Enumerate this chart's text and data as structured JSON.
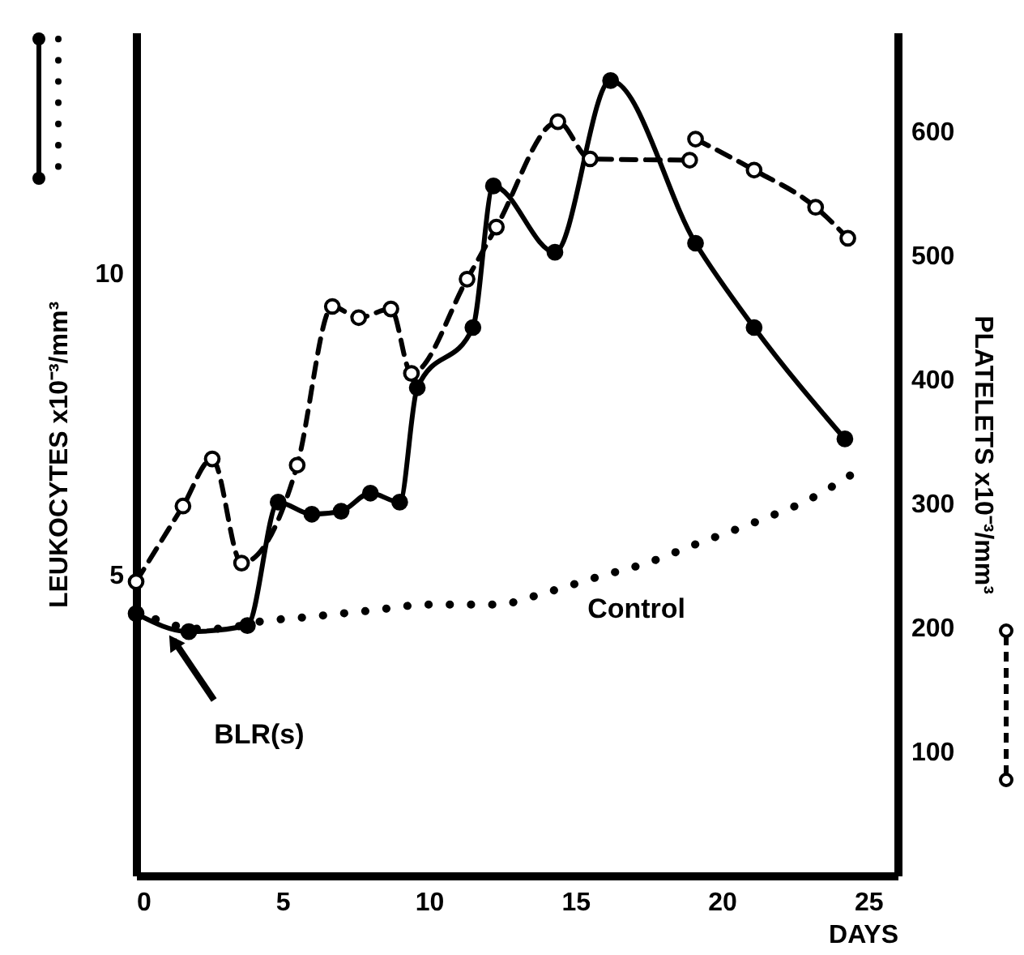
{
  "chart_data": {
    "type": "line",
    "xlabel": "DAYS",
    "ylabel": "LEUKOCYTES x10⁻³/mm³",
    "y2label": "PLATELETS x10⁻³/mm³",
    "xlim": [
      0,
      26
    ],
    "xticks": [
      0,
      5,
      10,
      15,
      20,
      25
    ],
    "ylim": [
      0,
      14
    ],
    "yticks": [
      5,
      10
    ],
    "y2lim": [
      0,
      680
    ],
    "y2ticks": [
      100,
      200,
      300,
      400,
      500,
      600
    ],
    "series": [
      {
        "color": "#000000",
        "line_style": "dotted",
        "marker": "none",
        "x": [
          0,
          1,
          2,
          3,
          4,
          6,
          8,
          10,
          12.3,
          14,
          15.7,
          17.5,
          19.1,
          21.3,
          23,
          24.4
        ],
        "values": [
          4.4,
          4.2,
          4.1,
          4.1,
          4.2,
          4.3,
          4.4,
          4.5,
          4.5,
          4.7,
          4.95,
          5.2,
          5.5,
          5.9,
          6.25,
          6.65
        ]
      },
      {
        "color": "#000000",
        "line_style": "solid",
        "marker": "circle",
        "x": [
          0,
          1.8,
          3.8,
          4.85,
          6,
          7,
          8,
          9,
          9.6,
          11.5,
          12.2,
          14.3,
          16.2,
          19.1,
          21.1,
          24.2
        ],
        "values": [
          4.35,
          4.05,
          4.15,
          6.2,
          6.0,
          6.05,
          6.35,
          6.2,
          8.1,
          9.1,
          11.45,
          10.35,
          13.2,
          10.5,
          9.1,
          7.25
        ]
      },
      {
        "color": "#000000",
        "line_style": "dashed",
        "marker": "circle",
        "axis": "y2",
        "x": [
          0,
          1.6,
          2.6,
          3.6,
          5.5,
          6.7,
          7.6,
          8.7,
          9.4,
          11.3,
          12.3,
          14.4,
          15.5,
          18.9,
          19.0,
          19.1,
          21.1,
          23.2,
          24.3
        ],
        "values": [
          237,
          298,
          336,
          252,
          331,
          459,
          450,
          457,
          405,
          481,
          523,
          608,
          578,
          577,
          null,
          594,
          569,
          539,
          514
        ]
      }
    ],
    "annotations": [
      {
        "text": "BLR(s)",
        "x": 1,
        "y": 4.1
      },
      {
        "text": "Control",
        "x": 15.3,
        "y": 4.9
      }
    ]
  }
}
